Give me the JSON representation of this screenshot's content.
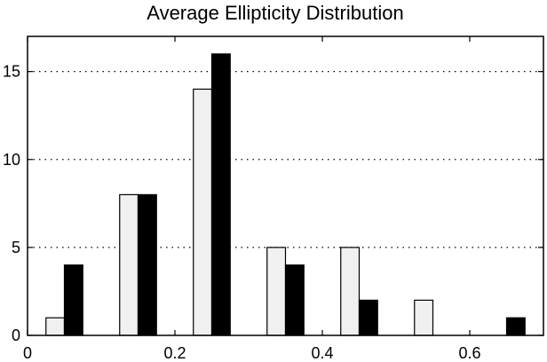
{
  "chart_data": {
    "type": "bar",
    "title": "Average Ellipticity Distribution",
    "xlabel": "",
    "ylabel": "",
    "xlim": [
      0,
      0.7
    ],
    "ylim": [
      0,
      17
    ],
    "x_ticks": [
      0,
      0.2,
      0.4,
      0.6
    ],
    "x_tick_labels": [
      "0",
      "0.2",
      "0.4",
      "0.6"
    ],
    "y_ticks": [
      0,
      5,
      10,
      15
    ],
    "y_tick_labels": [
      "0",
      "5",
      "10",
      "15"
    ],
    "grid": "horizontal dotted",
    "legend": "none",
    "bin_centers": [
      0.05,
      0.15,
      0.25,
      0.35,
      0.45,
      0.55,
      0.65
    ],
    "bar_width": 0.025,
    "series": [
      {
        "color": "#f0f0f0",
        "offset": -0.0125,
        "values": [
          1,
          8,
          14,
          5,
          5,
          2,
          0
        ]
      },
      {
        "color": "#000000",
        "offset": 0.0125,
        "values": [
          4,
          8,
          16,
          4,
          2,
          0,
          1
        ]
      }
    ]
  }
}
